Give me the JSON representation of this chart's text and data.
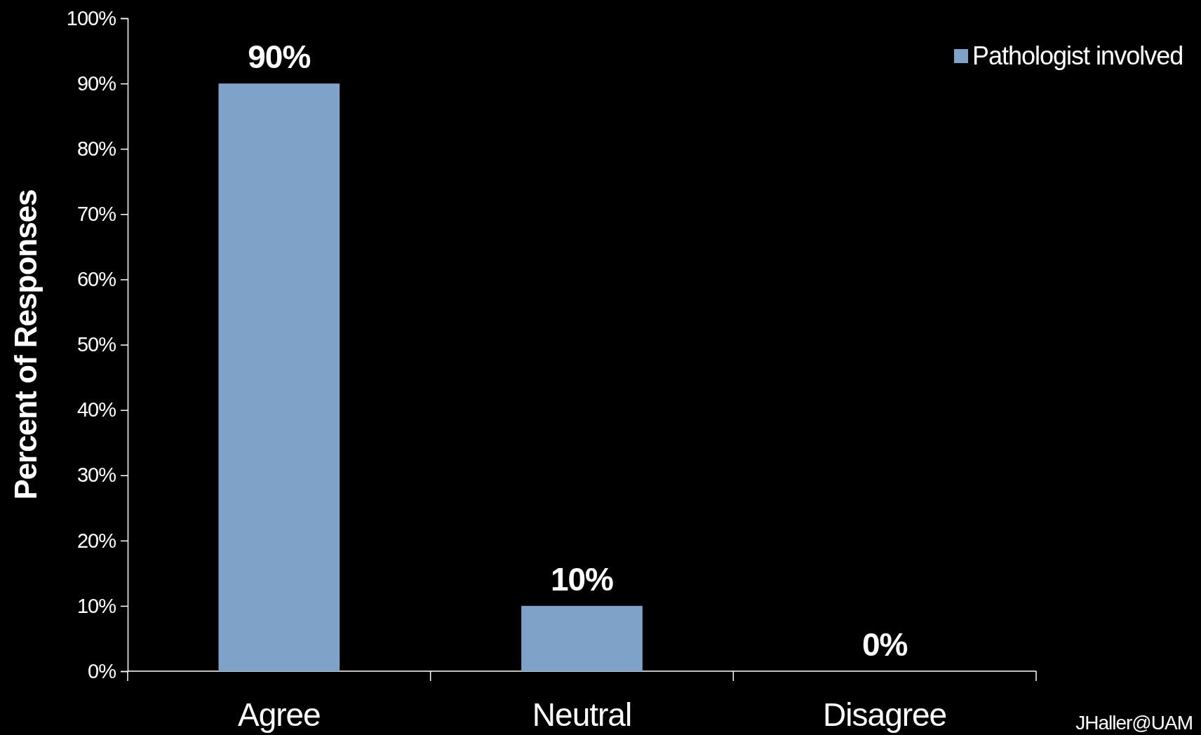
{
  "chart_data": {
    "type": "bar",
    "ylabel": "Percent of Responses",
    "categories": [
      "Agree",
      "Neutral",
      "Disagree"
    ],
    "series": [
      {
        "name": "Pathologist involved",
        "color": "#7fa3c8",
        "values": [
          90,
          10,
          0
        ]
      }
    ],
    "ylim": [
      0,
      100
    ],
    "yticks": [
      {
        "value": 0,
        "label": "0%"
      },
      {
        "value": 10,
        "label": "10%"
      },
      {
        "value": 20,
        "label": "20%"
      },
      {
        "value": 30,
        "label": "30%"
      },
      {
        "value": 40,
        "label": "40%"
      },
      {
        "value": 50,
        "label": "50%"
      },
      {
        "value": 60,
        "label": "60%"
      },
      {
        "value": 70,
        "label": "70%"
      },
      {
        "value": 80,
        "label": "80%"
      },
      {
        "value": 90,
        "label": "90%"
      },
      {
        "value": 100,
        "label": "100%"
      }
    ],
    "value_labels": [
      [
        "90%",
        "10%",
        "0%"
      ]
    ],
    "legend": "top right",
    "grid": false,
    "annotations": [
      "JHaller@UAM"
    ]
  }
}
